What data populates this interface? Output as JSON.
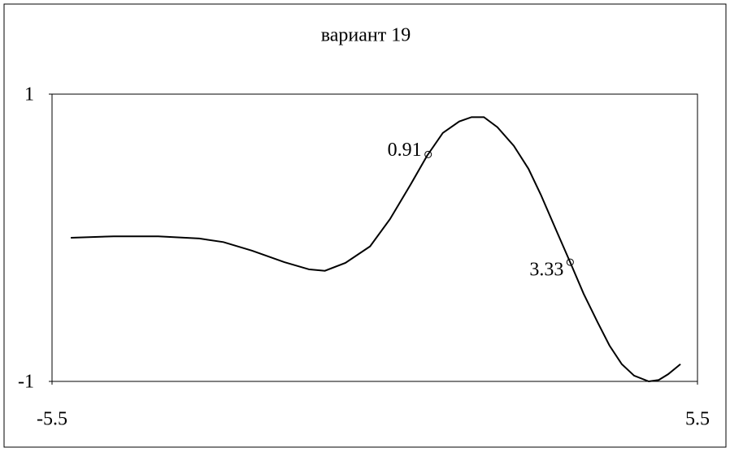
{
  "chart_data": {
    "type": "line",
    "title": "вариант 19",
    "x": [
      -5.18,
      -4.45,
      -3.69,
      -2.99,
      -2.58,
      -2.09,
      -1.54,
      -1.12,
      -0.85,
      -0.5,
      -0.08,
      0.26,
      0.61,
      0.89,
      1.16,
      1.44,
      1.65,
      1.86,
      2.09,
      2.37,
      2.62,
      2.83,
      3.1,
      3.33,
      3.56,
      3.8,
      4.0,
      4.21,
      4.42,
      4.67,
      4.84,
      5.0,
      5.21
    ],
    "values": [
      0.0,
      0.01,
      0.01,
      -0.005,
      -0.03,
      -0.09,
      -0.17,
      -0.22,
      -0.23,
      -0.175,
      -0.06,
      0.13,
      0.37,
      0.57,
      0.73,
      0.81,
      0.84,
      0.84,
      0.77,
      0.64,
      0.48,
      0.3,
      0.045,
      -0.17,
      -0.39,
      -0.59,
      -0.75,
      -0.88,
      -0.96,
      -1.0,
      -0.99,
      -0.95,
      -0.88
    ],
    "color": "#000000",
    "markers": {
      "x": [
        0.91,
        3.33
      ],
      "values": [
        0.58,
        -0.17
      ]
    },
    "xlim": [
      -5.5,
      5.5
    ],
    "xticks": [
      -5.5,
      5.5
    ],
    "ylim": [
      -1,
      1
    ],
    "yticks": [
      -1,
      1
    ]
  }
}
